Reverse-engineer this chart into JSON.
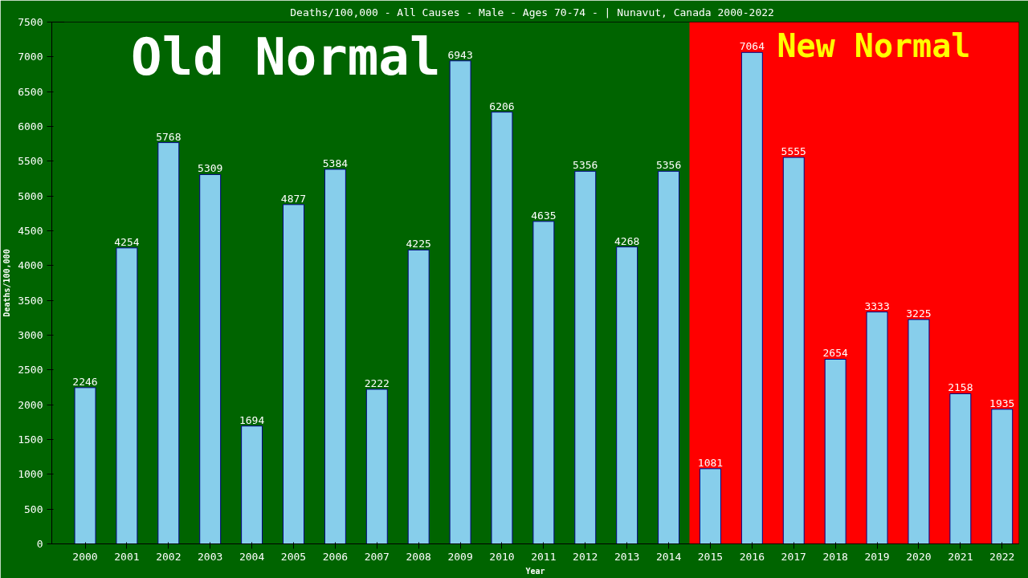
{
  "chart_data": {
    "type": "bar",
    "title": "Deaths/100,000 - All Causes - Male - Ages 70-74 -  | Nunavut, Canada 2000-2022",
    "xlabel": "Year",
    "ylabel": "Deaths/100,000",
    "categories": [
      "2000",
      "2001",
      "2002",
      "2003",
      "2004",
      "2005",
      "2006",
      "2007",
      "2008",
      "2009",
      "2010",
      "2011",
      "2012",
      "2013",
      "2014",
      "2015",
      "2016",
      "2017",
      "2018",
      "2019",
      "2020",
      "2021",
      "2022"
    ],
    "values": [
      2246,
      4254,
      5768,
      5309,
      1694,
      4877,
      5384,
      2222,
      4225,
      6943,
      6206,
      4635,
      5356,
      4268,
      5356,
      1081,
      7064,
      5555,
      2654,
      3333,
      3225,
      2158,
      1935
    ],
    "color": "#87ceeb",
    "data_labels": true,
    "ylim": [
      0,
      7500
    ],
    "yticks": [
      0,
      500,
      1000,
      1500,
      2000,
      2500,
      3000,
      3500,
      4000,
      4500,
      5000,
      5500,
      6000,
      6500,
      7000,
      7500
    ],
    "grid": false,
    "bands": [
      {
        "axis": "x",
        "from": "2000",
        "to": "2014",
        "label": "Old Normal",
        "color": "#006400"
      },
      {
        "axis": "x",
        "from": "2015",
        "to": "2022",
        "label": "New Normal",
        "color": "#ff0000"
      }
    ]
  }
}
